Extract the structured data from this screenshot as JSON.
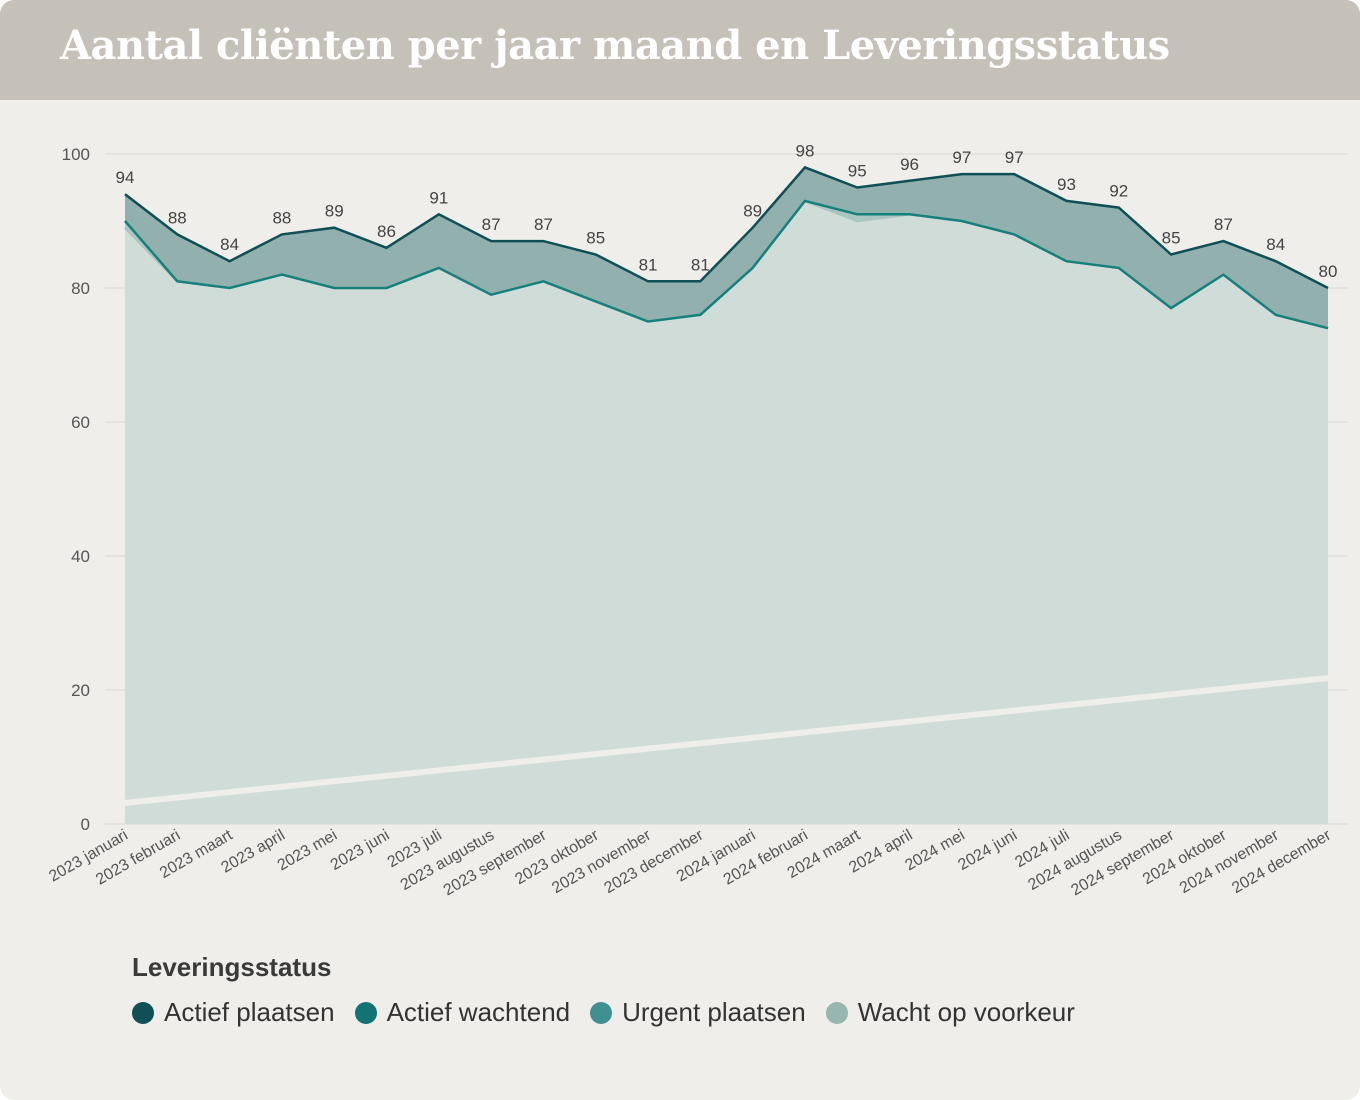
{
  "header": {
    "title": "Aantal cliënten per jaar maand en Leveringsstatus"
  },
  "legend": {
    "title": "Leveringsstatus",
    "items": [
      {
        "label": "Actief plaatsen",
        "color": "#0f4f55"
      },
      {
        "label": "Actief wachtend",
        "color": "#127373"
      },
      {
        "label": "Urgent plaatsen",
        "color": "#3f9090"
      },
      {
        "label": "Wacht op voorkeur",
        "color": "#98b6b0"
      }
    ]
  },
  "chart_data": {
    "type": "area",
    "title": "Aantal cliënten per jaar maand en Leveringsstatus",
    "xlabel": "",
    "ylabel": "",
    "ylim": [
      0,
      100
    ],
    "yticks": [
      0,
      20,
      40,
      60,
      80,
      100
    ],
    "grid": true,
    "legend_position": "bottom",
    "categories": [
      "2023 januari",
      "2023 februari",
      "2023 maart",
      "2023 april",
      "2023 mei",
      "2023 juni",
      "2023 juli",
      "2023 augustus",
      "2023 september",
      "2023 oktober",
      "2023 november",
      "2023 december",
      "2024 januari",
      "2024 februari",
      "2024 maart",
      "2024 april",
      "2024 mei",
      "2024 juni",
      "2024 juli",
      "2024 augustus",
      "2024 september",
      "2024 oktober",
      "2024 november",
      "2024 december"
    ],
    "totals": [
      94,
      88,
      84,
      88,
      89,
      86,
      91,
      87,
      87,
      85,
      81,
      81,
      89,
      98,
      95,
      96,
      97,
      97,
      93,
      92,
      85,
      87,
      84,
      80
    ],
    "series_cumulative": [
      {
        "name": "Actief plaatsen",
        "values": [
          94,
          88,
          84,
          88,
          89,
          86,
          91,
          87,
          87,
          85,
          81,
          81,
          89,
          98,
          95,
          96,
          97,
          97,
          93,
          92,
          85,
          87,
          84,
          80
        ]
      },
      {
        "name": "Actief wachtend",
        "values": [
          90,
          81,
          80,
          82,
          80,
          80,
          83,
          79,
          81,
          78,
          75,
          76,
          83,
          93,
          91,
          91,
          90,
          88,
          84,
          83,
          77,
          82,
          76,
          74
        ]
      },
      {
        "name": "Urgent plaatsen",
        "values": [
          90,
          81,
          80,
          82,
          80,
          80,
          83,
          79,
          81,
          78,
          75,
          76,
          83,
          93,
          91,
          91,
          90,
          88,
          84,
          83,
          77,
          82,
          76,
          74
        ]
      },
      {
        "name": "Wacht op voorkeur",
        "values": [
          89,
          81,
          80,
          82,
          80,
          80,
          83,
          79,
          81,
          78,
          75,
          76,
          83,
          93,
          90,
          91,
          90,
          88,
          84,
          83,
          77,
          82,
          76,
          74
        ]
      }
    ]
  }
}
